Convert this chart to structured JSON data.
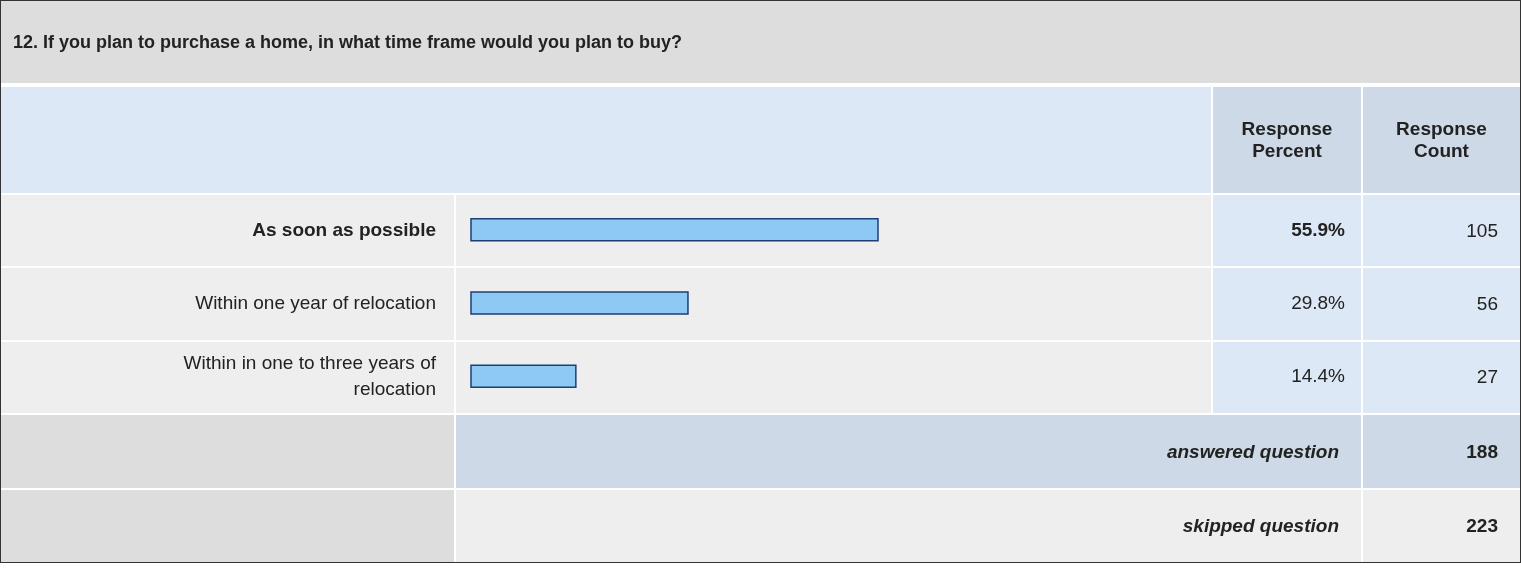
{
  "chart_data": {
    "type": "bar",
    "orientation": "horizontal",
    "title": "12. If you plan to purchase a home, in what time frame would you plan to buy?",
    "categories": [
      "As soon as possible",
      "Within one year of relocation",
      "Within in one to three years of relocation"
    ],
    "values": [
      55.9,
      29.8,
      14.4
    ],
    "value_labels": [
      "55.9%",
      "29.8%",
      "14.4%"
    ],
    "color": "#8ec9f5",
    "tick_labels": false,
    "annotations": [
      "Response Percent",
      "Response Count",
      "105",
      "56",
      "27",
      "answered question",
      "188",
      "skipped question",
      "223"
    ]
  }
}
